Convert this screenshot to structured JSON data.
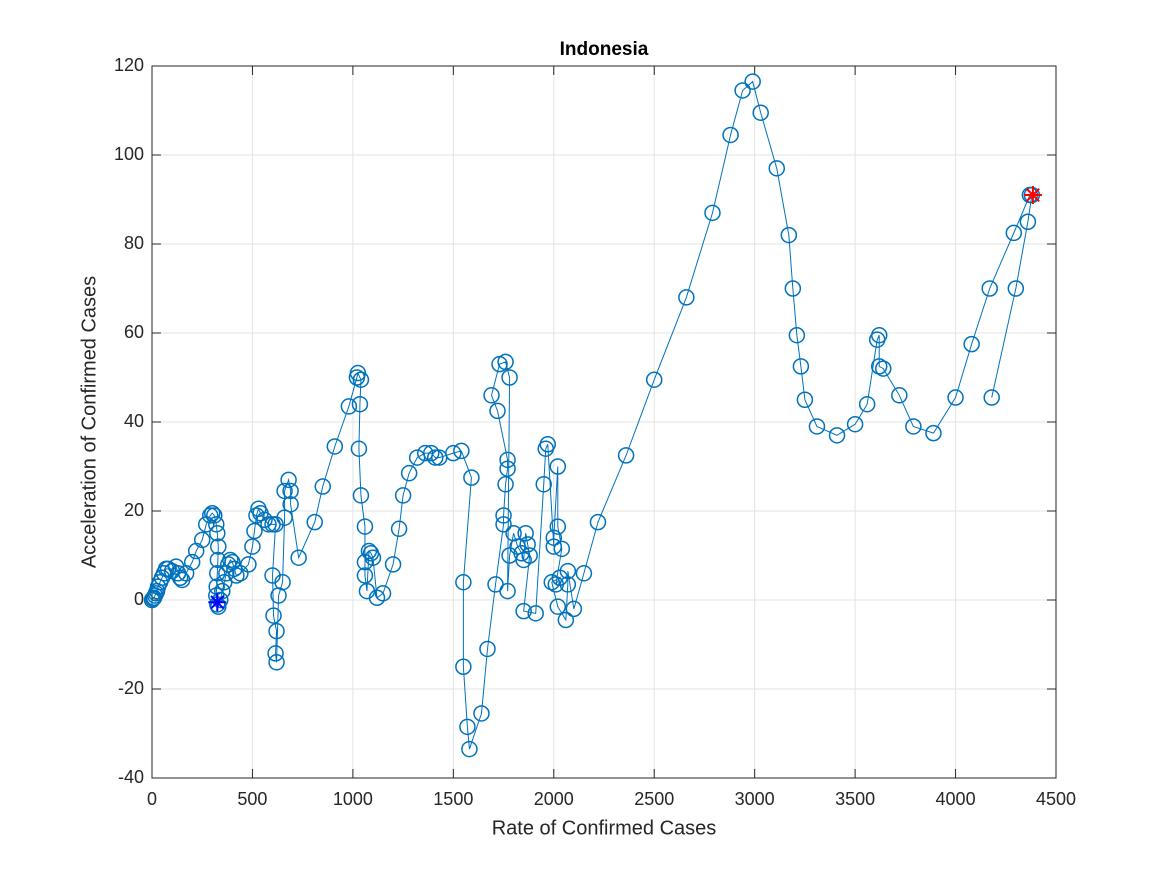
{
  "chart_data": {
    "type": "line",
    "title": "Indonesia",
    "xlabel": "Rate of Confirmed Cases",
    "ylabel": "Acceleration of Confirmed Cases",
    "xlim": [
      0,
      4500
    ],
    "ylim": [
      -40,
      120
    ],
    "xticks": [
      0,
      500,
      1000,
      1500,
      2000,
      2500,
      3000,
      3500,
      4000,
      4500
    ],
    "yticks": [
      -40,
      -20,
      0,
      20,
      40,
      60,
      80,
      100,
      120
    ],
    "grid": true,
    "series": [
      {
        "color": "#0072bd",
        "x": [
          0,
          5,
          10,
          15,
          20,
          25,
          30,
          40,
          50,
          60,
          70,
          80,
          100,
          120,
          130,
          140,
          150,
          170,
          200,
          220,
          250,
          270,
          290,
          300,
          310,
          320,
          325,
          330,
          328,
          325,
          322,
          320,
          325,
          330,
          340,
          350,
          360,
          370,
          380,
          390,
          400,
          410,
          420,
          440,
          480,
          500,
          510,
          520,
          530,
          540,
          560,
          580,
          600,
          615,
          600,
          605,
          620,
          615,
          620,
          630,
          650,
          660,
          660,
          680,
          690,
          690,
          730,
          810,
          850,
          910,
          980,
          1020,
          1025,
          1040,
          1035,
          1030,
          1040,
          1060,
          1060,
          1060,
          1070,
          1080,
          1090,
          1100,
          1120,
          1150,
          1200,
          1230,
          1250,
          1280,
          1320,
          1360,
          1390,
          1410,
          1430,
          1500,
          1540,
          1590,
          1550,
          1550,
          1570,
          1580,
          1640,
          1670,
          1710,
          1750,
          1750,
          1760,
          1770,
          1770,
          1720,
          1690,
          1730,
          1760,
          1780,
          1770,
          1780,
          1800,
          1820,
          1840,
          1850,
          1860,
          1870,
          1880,
          1850,
          1910,
          1950,
          1960,
          1970,
          2000,
          2000,
          2020,
          2020,
          2040,
          2010,
          2030,
          1990,
          2020,
          2060,
          2070,
          2070,
          2100,
          2150,
          2220,
          2360,
          2500,
          2660,
          2790,
          2880,
          2940,
          2990,
          3030,
          3110,
          3170,
          3190,
          3210,
          3230,
          3250,
          3310,
          3410,
          3500,
          3560,
          3610,
          3620,
          3620,
          3640,
          3720,
          3790,
          3890,
          4000,
          4080,
          4170,
          4290,
          4370,
          4380,
          4360,
          4300,
          4180
        ],
        "values": [
          0,
          0.3,
          0.5,
          1,
          1.5,
          2,
          3,
          4,
          5,
          6,
          7,
          7,
          6.5,
          7.5,
          6,
          5,
          4.5,
          6,
          8.5,
          11,
          13.5,
          17,
          19,
          19.5,
          19,
          17,
          15,
          12,
          9,
          6,
          3,
          1,
          -1,
          -1.5,
          0,
          2,
          4,
          6,
          8,
          9,
          8.5,
          7,
          5.5,
          6,
          8,
          12,
          15.5,
          19,
          20.5,
          19.5,
          18,
          17,
          17,
          17,
          5.5,
          -3.5,
          -7,
          -12,
          -14,
          1,
          4,
          18.5,
          24.5,
          27,
          24.5,
          21.5,
          9.5,
          17.5,
          25.5,
          34.5,
          43.5,
          50,
          51,
          49.5,
          44,
          34,
          23.5,
          16.5,
          8.5,
          5.5,
          2,
          11,
          10.5,
          9.5,
          0.5,
          1.5,
          8,
          16,
          23.5,
          28.5,
          32,
          33,
          33,
          32,
          32,
          33,
          33.5,
          27.5,
          4,
          -15,
          -28.5,
          -33.5,
          -25.5,
          -11,
          3.5,
          17,
          19,
          26,
          29.5,
          31.5,
          42.5,
          46,
          53,
          53.5,
          50,
          2,
          10,
          15,
          12,
          10.5,
          9,
          15,
          12.5,
          10,
          -2.5,
          -3,
          26,
          34,
          35,
          12,
          14,
          30,
          16.5,
          11.5,
          3.5,
          5,
          4,
          -1.5,
          -4.5,
          3.5,
          6.5,
          -2,
          6,
          17.5,
          32.5,
          49.5,
          68,
          87,
          104.5,
          114.5,
          116.5,
          109.5,
          97,
          82,
          70,
          59.5,
          52.5,
          45,
          39,
          37,
          39.5,
          44,
          58.5,
          59.5,
          52.5,
          52,
          46,
          39,
          37.5,
          45.5,
          57.5,
          70,
          82.5,
          91,
          91,
          85,
          70,
          45.5
        ]
      }
    ],
    "start_marker": {
      "x": 325,
      "y": -0.5,
      "color": "#0000ff"
    },
    "end_marker": {
      "x": 4385,
      "y": 91,
      "color": "#ff0000"
    }
  }
}
